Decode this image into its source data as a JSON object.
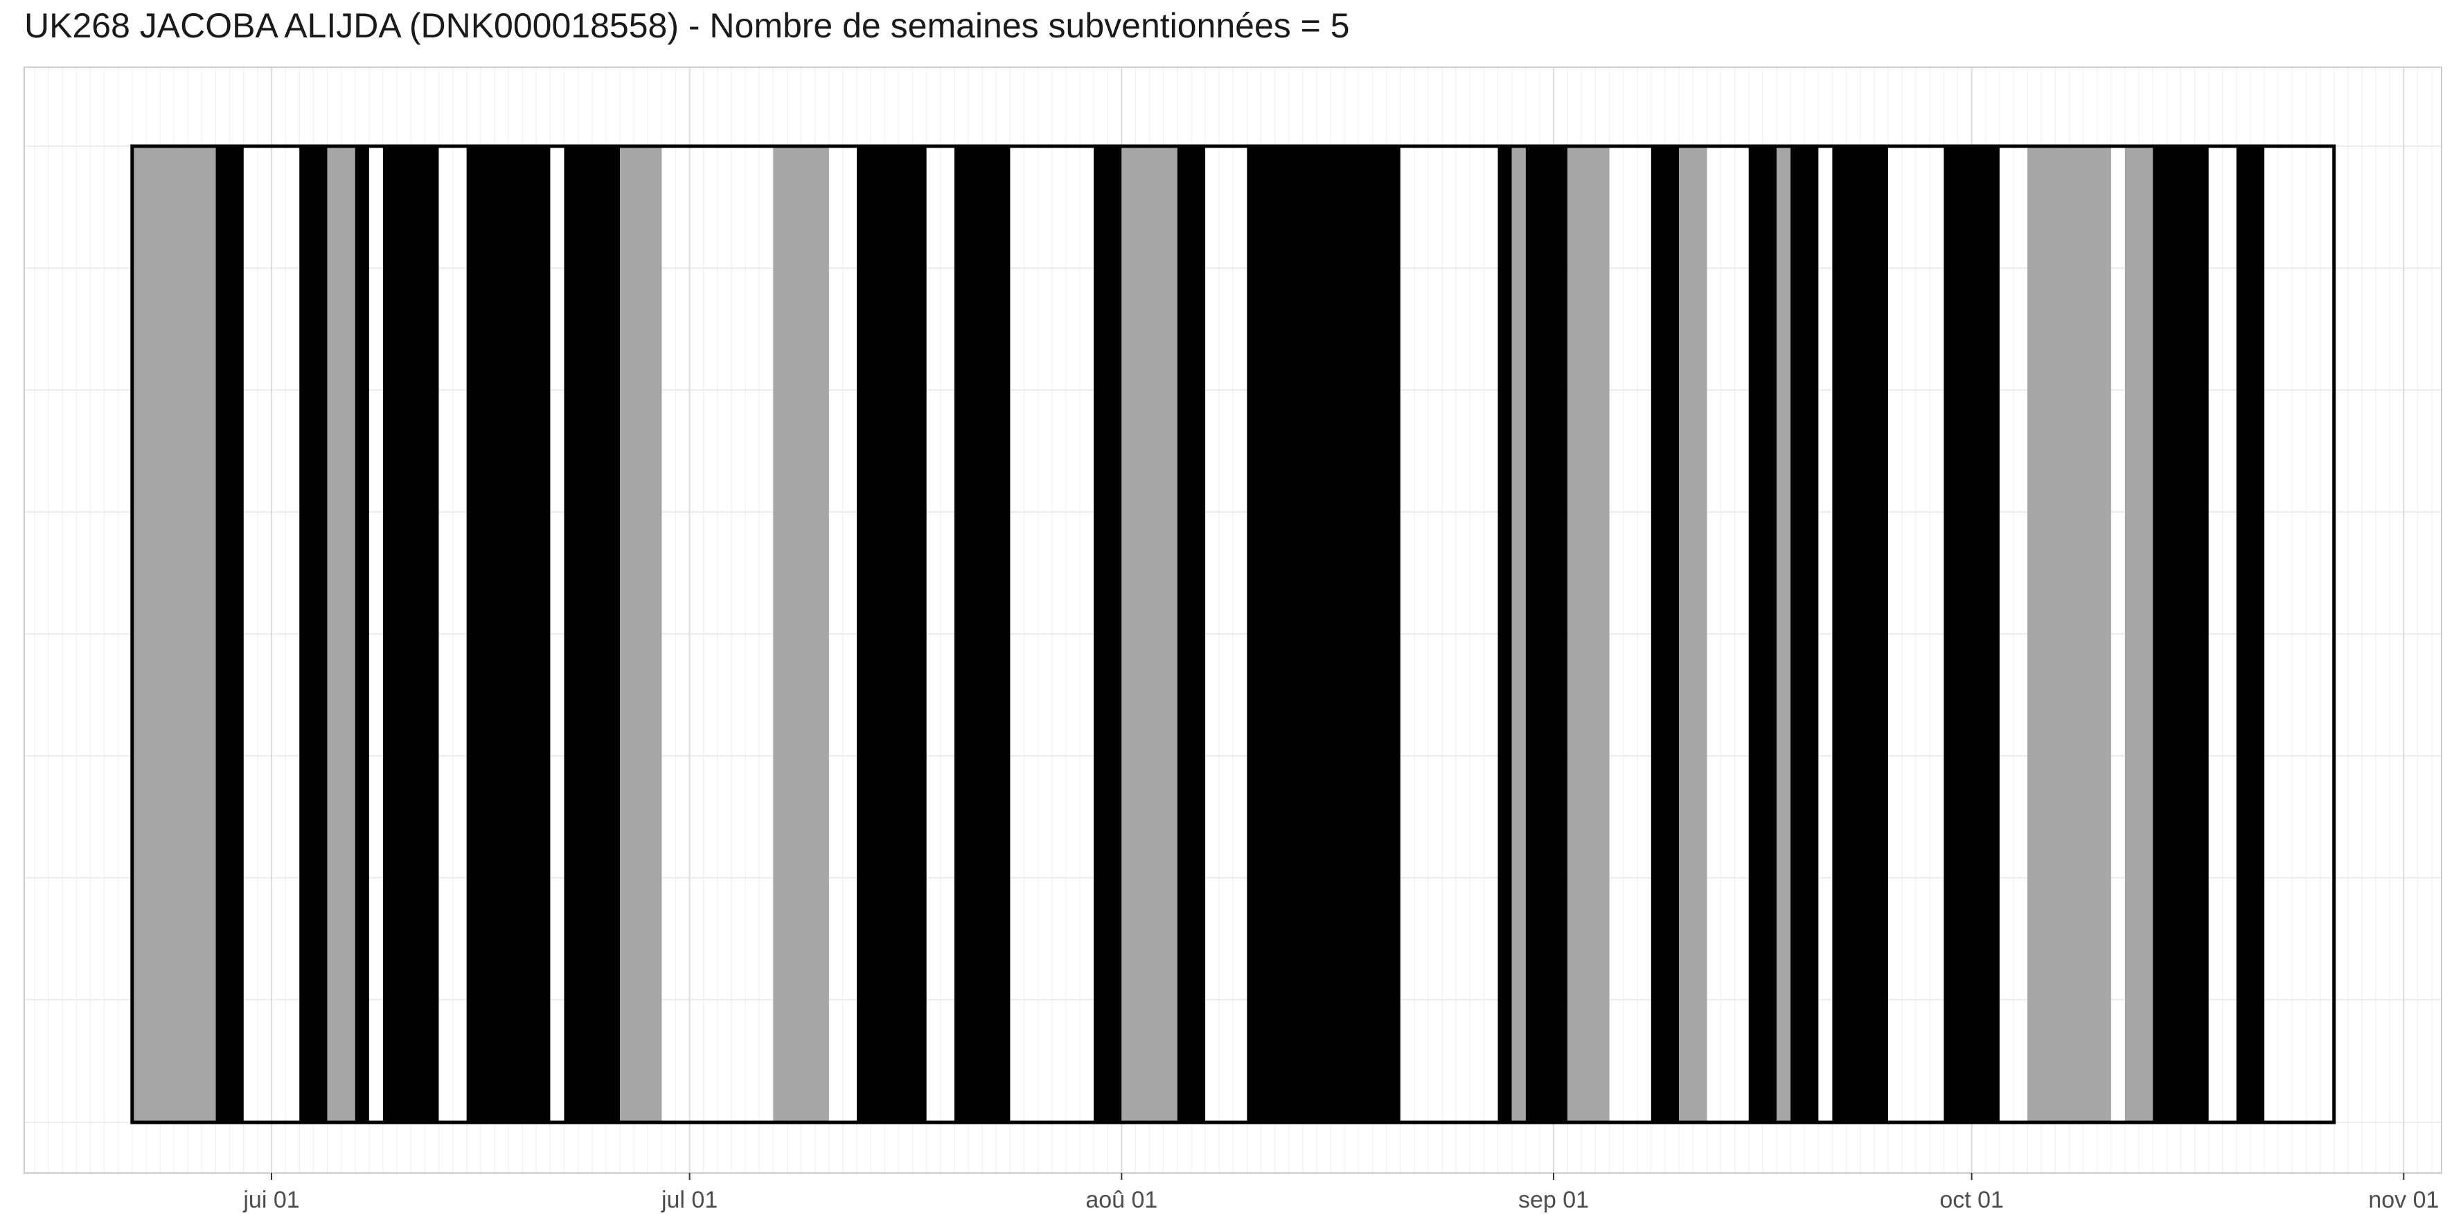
{
  "chart_data": {
    "type": "timeline",
    "title": "UK268 JACOBA ALIJDA (DNK000018558) - Nombre de semaines subventionnées = 5",
    "xlabel": "",
    "ylabel": "",
    "x_unit": "days since jui 01",
    "xlim": [
      -18,
      123
    ],
    "ticks": [
      {
        "label": "jui 01",
        "day": 0
      },
      {
        "label": "jul 01",
        "day": 30
      },
      {
        "label": "aoû 01",
        "day": 61
      },
      {
        "label": "sep 01",
        "day": 92
      },
      {
        "label": "oct 01",
        "day": 122
      },
      {
        "label": "nov 01",
        "day": 153
      }
    ],
    "range": {
      "start": -10,
      "end": 148
    },
    "colors": {
      "black": "#000000",
      "gray": "#a6a6a6",
      "frame": "#000000",
      "grid": "#ebebeb",
      "panel_border": "#cccccc"
    },
    "segments": [
      {
        "start": -10,
        "end": -4,
        "color": "gray"
      },
      {
        "start": -4,
        "end": -2,
        "color": "black"
      },
      {
        "start": 2,
        "end": 4,
        "color": "black"
      },
      {
        "start": 4,
        "end": 6,
        "color": "gray"
      },
      {
        "start": 6,
        "end": 7,
        "color": "black"
      },
      {
        "start": 8,
        "end": 12,
        "color": "black"
      },
      {
        "start": 14,
        "end": 20,
        "color": "black"
      },
      {
        "start": 21,
        "end": 25,
        "color": "black"
      },
      {
        "start": 25,
        "end": 28,
        "color": "gray"
      },
      {
        "start": 36,
        "end": 40,
        "color": "gray"
      },
      {
        "start": 42,
        "end": 47,
        "color": "black"
      },
      {
        "start": 49,
        "end": 53,
        "color": "black"
      },
      {
        "start": 59,
        "end": 61,
        "color": "black"
      },
      {
        "start": 61,
        "end": 65,
        "color": "gray"
      },
      {
        "start": 65,
        "end": 67,
        "color": "black"
      },
      {
        "start": 70,
        "end": 81,
        "color": "black"
      },
      {
        "start": 88,
        "end": 89,
        "color": "black"
      },
      {
        "start": 89,
        "end": 90,
        "color": "gray"
      },
      {
        "start": 90,
        "end": 93,
        "color": "black"
      },
      {
        "start": 93,
        "end": 96,
        "color": "gray"
      },
      {
        "start": 99,
        "end": 101,
        "color": "black"
      },
      {
        "start": 101,
        "end": 103,
        "color": "gray"
      },
      {
        "start": 106,
        "end": 108,
        "color": "black"
      },
      {
        "start": 108,
        "end": 109,
        "color": "gray"
      },
      {
        "start": 109,
        "end": 111,
        "color": "black"
      },
      {
        "start": 112,
        "end": 116,
        "color": "black"
      },
      {
        "start": 120,
        "end": 124,
        "color": "black"
      },
      {
        "start": 126,
        "end": 132,
        "color": "gray"
      },
      {
        "start": 133,
        "end": 135,
        "color": "gray"
      },
      {
        "start": 135,
        "end": 139,
        "color": "black"
      },
      {
        "start": 141,
        "end": 143,
        "color": "black"
      }
    ]
  }
}
